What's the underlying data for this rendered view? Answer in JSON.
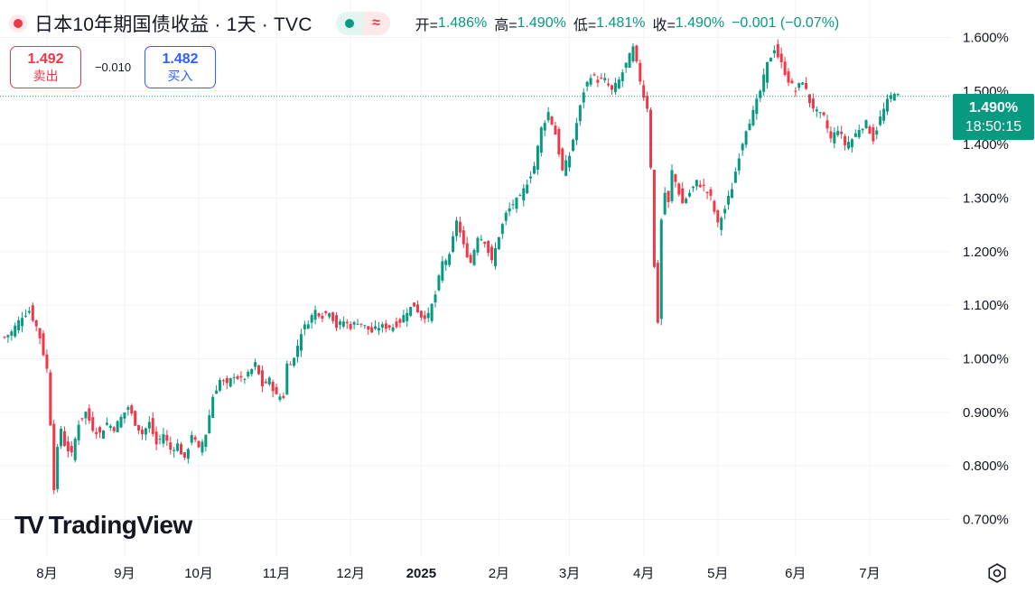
{
  "header": {
    "title": "日本10年期国债收益 · 1天 · TVC",
    "ohlc": {
      "open_label": "开=",
      "open": "1.486%",
      "high_label": "高=",
      "high": "1.490%",
      "low_label": "低=",
      "low": "1.481%",
      "close_label": "收=",
      "close": "1.490%",
      "change": "−0.001 (−0.07%)"
    },
    "compare_icon": "wave-icon"
  },
  "trade": {
    "sell_price": "1.492",
    "sell_label": "卖出",
    "spread": "−0.010",
    "buy_price": "1.482",
    "buy_label": "买入"
  },
  "price_tag": {
    "value": "1.490%",
    "countdown": "18:50:15"
  },
  "logo": {
    "mark": "TV",
    "text": "TradingView"
  },
  "colors": {
    "up": "#089981",
    "down": "#f23645",
    "grid": "#f0f3fa",
    "text": "#131722"
  },
  "chart_data": {
    "type": "candlestick",
    "title": "日本10年期国债收益 · 1天 · TVC",
    "y_ticks": [
      "1.600%",
      "1.500%",
      "1.400%",
      "1.300%",
      "1.200%",
      "1.100%",
      "1.000%",
      "0.900%",
      "0.800%",
      "0.700%"
    ],
    "y_tick_values": [
      1.6,
      1.5,
      1.4,
      1.3,
      1.2,
      1.1,
      1.0,
      0.9,
      0.8,
      0.7
    ],
    "ylim": [
      0.63,
      1.67
    ],
    "x_ticks": [
      {
        "label": "8月",
        "idx": 12
      },
      {
        "label": "9月",
        "idx": 34
      },
      {
        "label": "10月",
        "idx": 55
      },
      {
        "label": "11月",
        "idx": 77
      },
      {
        "label": "12月",
        "idx": 98
      },
      {
        "label": "2025",
        "idx": 118
      },
      {
        "label": "2月",
        "idx": 140
      },
      {
        "label": "3月",
        "idx": 160
      },
      {
        "label": "4月",
        "idx": 181
      },
      {
        "label": "5月",
        "idx": 202
      },
      {
        "label": "6月",
        "idx": 224
      },
      {
        "label": "7月",
        "idx": 245
      }
    ],
    "x_count": 260,
    "last_price": 1.49,
    "anchors": [
      [
        0,
        1.04
      ],
      [
        2,
        1.05
      ],
      [
        5,
        1.08
      ],
      [
        7,
        1.09
      ],
      [
        9,
        1.06
      ],
      [
        10,
        1.04
      ],
      [
        11,
        1.01
      ],
      [
        12,
        0.98
      ],
      [
        13,
        0.88
      ],
      [
        14,
        0.76
      ],
      [
        15,
        0.83
      ],
      [
        16,
        0.87
      ],
      [
        17,
        0.84
      ],
      [
        19,
        0.82
      ],
      [
        21,
        0.88
      ],
      [
        23,
        0.9
      ],
      [
        25,
        0.87
      ],
      [
        27,
        0.86
      ],
      [
        29,
        0.88
      ],
      [
        31,
        0.87
      ],
      [
        33,
        0.89
      ],
      [
        35,
        0.91
      ],
      [
        37,
        0.88
      ],
      [
        39,
        0.86
      ],
      [
        41,
        0.88
      ],
      [
        43,
        0.84
      ],
      [
        45,
        0.86
      ],
      [
        47,
        0.83
      ],
      [
        49,
        0.84
      ],
      [
        51,
        0.81
      ],
      [
        53,
        0.86
      ],
      [
        55,
        0.83
      ],
      [
        57,
        0.86
      ],
      [
        59,
        0.93
      ],
      [
        61,
        0.96
      ],
      [
        63,
        0.95
      ],
      [
        65,
        0.97
      ],
      [
        67,
        0.96
      ],
      [
        69,
        0.97
      ],
      [
        71,
        0.99
      ],
      [
        73,
        0.95
      ],
      [
        75,
        0.96
      ],
      [
        77,
        0.93
      ],
      [
        79,
        0.93
      ],
      [
        80,
        0.99
      ],
      [
        82,
        1.0
      ],
      [
        84,
        1.05
      ],
      [
        86,
        1.07
      ],
      [
        88,
        1.09
      ],
      [
        90,
        1.08
      ],
      [
        92,
        1.09
      ],
      [
        94,
        1.06
      ],
      [
        96,
        1.07
      ],
      [
        98,
        1.06
      ],
      [
        100,
        1.07
      ],
      [
        102,
        1.06
      ],
      [
        104,
        1.05
      ],
      [
        106,
        1.06
      ],
      [
        108,
        1.06
      ],
      [
        110,
        1.06
      ],
      [
        112,
        1.07
      ],
      [
        114,
        1.09
      ],
      [
        116,
        1.1
      ],
      [
        118,
        1.08
      ],
      [
        120,
        1.08
      ],
      [
        122,
        1.12
      ],
      [
        124,
        1.18
      ],
      [
        126,
        1.19
      ],
      [
        128,
        1.26
      ],
      [
        130,
        1.21
      ],
      [
        132,
        1.18
      ],
      [
        134,
        1.23
      ],
      [
        136,
        1.22
      ],
      [
        138,
        1.18
      ],
      [
        140,
        1.23
      ],
      [
        142,
        1.27
      ],
      [
        144,
        1.29
      ],
      [
        146,
        1.3
      ],
      [
        148,
        1.33
      ],
      [
        150,
        1.36
      ],
      [
        152,
        1.43
      ],
      [
        154,
        1.46
      ],
      [
        156,
        1.42
      ],
      [
        158,
        1.35
      ],
      [
        160,
        1.38
      ],
      [
        162,
        1.44
      ],
      [
        164,
        1.5
      ],
      [
        166,
        1.53
      ],
      [
        168,
        1.52
      ],
      [
        170,
        1.52
      ],
      [
        172,
        1.5
      ],
      [
        174,
        1.52
      ],
      [
        176,
        1.55
      ],
      [
        178,
        1.58
      ],
      [
        180,
        1.52
      ],
      [
        181,
        1.49
      ],
      [
        182,
        1.47
      ],
      [
        183,
        1.36
      ],
      [
        184,
        1.17
      ],
      [
        185,
        1.07
      ],
      [
        186,
        1.26
      ],
      [
        187,
        1.31
      ],
      [
        188,
        1.29
      ],
      [
        189,
        1.35
      ],
      [
        190,
        1.33
      ],
      [
        192,
        1.29
      ],
      [
        194,
        1.31
      ],
      [
        196,
        1.33
      ],
      [
        198,
        1.32
      ],
      [
        200,
        1.3
      ],
      [
        202,
        1.25
      ],
      [
        204,
        1.28
      ],
      [
        206,
        1.32
      ],
      [
        208,
        1.38
      ],
      [
        210,
        1.43
      ],
      [
        212,
        1.46
      ],
      [
        214,
        1.5
      ],
      [
        216,
        1.55
      ],
      [
        218,
        1.58
      ],
      [
        220,
        1.55
      ],
      [
        222,
        1.52
      ],
      [
        224,
        1.5
      ],
      [
        226,
        1.52
      ],
      [
        228,
        1.48
      ],
      [
        230,
        1.46
      ],
      [
        232,
        1.45
      ],
      [
        234,
        1.41
      ],
      [
        236,
        1.43
      ],
      [
        238,
        1.4
      ],
      [
        240,
        1.41
      ],
      [
        242,
        1.43
      ],
      [
        244,
        1.44
      ],
      [
        246,
        1.41
      ],
      [
        247,
        1.43
      ],
      [
        248,
        1.45
      ],
      [
        250,
        1.48
      ],
      [
        252,
        1.5
      ],
      [
        253,
        1.49
      ]
    ],
    "grid": true
  }
}
